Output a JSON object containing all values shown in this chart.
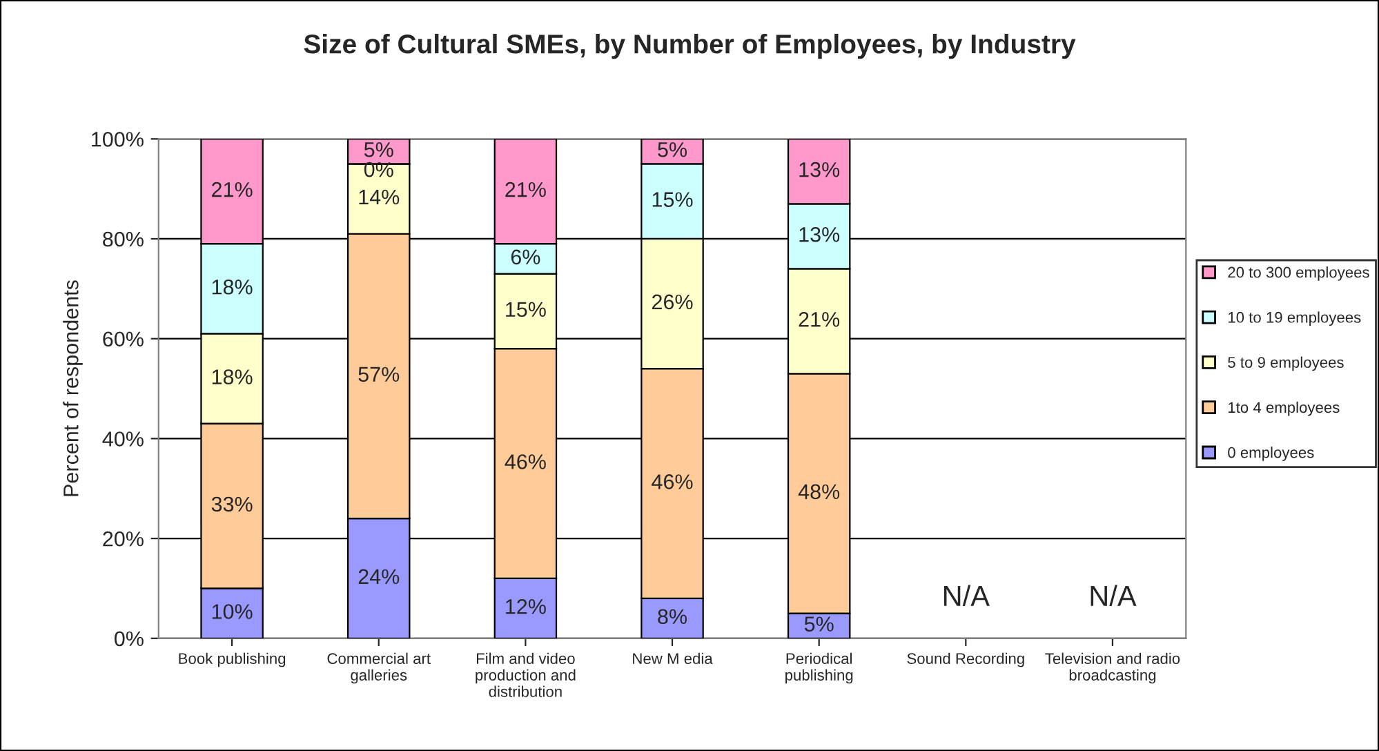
{
  "chart_data": {
    "type": "bar",
    "title": "Size of Cultural SMEs, by Number of Employees, by Industry",
    "ylabel": "Percent of respondents",
    "categories": [
      "Book publishing",
      "Commercial art\ngalleries",
      "Film and video\nproduction and\ndistribution",
      "New M edia",
      "Periodical\npublishing",
      "Sound Recording",
      "Television and radio\nbroadcasting"
    ],
    "stacked": true,
    "series": [
      {
        "name": "0 employees",
        "color": "#9999ff",
        "values": [
          10,
          24,
          12,
          8,
          5,
          null,
          null
        ],
        "value_labels": [
          "10%",
          "24%",
          "12%",
          "8%",
          "5%",
          null,
          null
        ]
      },
      {
        "name": "1to 4 employees",
        "color": "#ffcc99",
        "values": [
          33,
          57,
          46,
          46,
          48,
          null,
          null
        ],
        "value_labels": [
          "33%",
          "57%",
          "46%",
          "46%",
          "48%",
          null,
          null
        ]
      },
      {
        "name": "5 to 9 employees",
        "color": "#ffffcc",
        "values": [
          18,
          14,
          15,
          26,
          21,
          null,
          null
        ],
        "value_labels": [
          "18%",
          "14%",
          "15%",
          "26%",
          "21%",
          null,
          null
        ]
      },
      {
        "name": "10 to 19 employees",
        "color": "#ccffff",
        "values": [
          18,
          0,
          6,
          15,
          13,
          null,
          null
        ],
        "value_labels": [
          "18%",
          "0%",
          "6%",
          "15%",
          "13%",
          null,
          null
        ]
      },
      {
        "name": "20 to 300 employees",
        "color": "#ff99cc",
        "values": [
          21,
          5,
          21,
          5,
          13,
          null,
          null
        ],
        "value_labels": [
          "21%",
          "5%",
          "21%",
          "5%",
          "13%",
          null,
          null
        ]
      }
    ],
    "ylim": [
      0,
      100
    ],
    "yticks": [
      {
        "value": 0,
        "label": "0%"
      },
      {
        "value": 20,
        "label": "20%"
      },
      {
        "value": 40,
        "label": "40%"
      },
      {
        "value": 60,
        "label": "60%"
      },
      {
        "value": 80,
        "label": "80%"
      },
      {
        "value": 100,
        "label": "100%"
      }
    ],
    "annotations": [
      "N/A",
      "N/A"
    ],
    "grid": "y",
    "legend": "right"
  }
}
